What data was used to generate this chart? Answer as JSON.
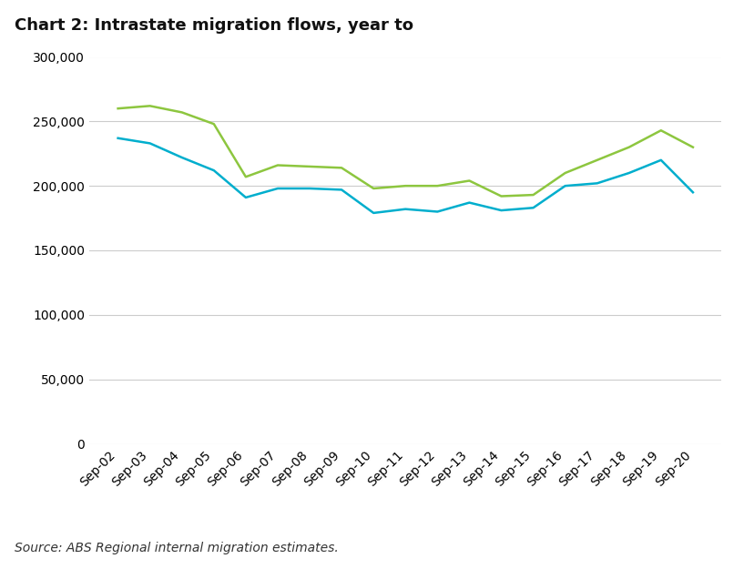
{
  "title": "Chart 2: Intrastate migration flows, year to",
  "source": "Source: ABS Regional internal migration estimates.",
  "x_labels": [
    "Sep-02",
    "Sep-03",
    "Sep-04",
    "Sep-05",
    "Sep-06",
    "Sep-07",
    "Sep-08",
    "Sep-09",
    "Sep-10",
    "Sep-11",
    "Sep-12",
    "Sep-13",
    "Sep-14",
    "Sep-15",
    "Sep-16",
    "Sep-17",
    "Sep-18",
    "Sep-19",
    "Sep-20"
  ],
  "arrivals": [
    260000,
    262000,
    257000,
    248000,
    207000,
    216000,
    215000,
    214000,
    198000,
    200000,
    200000,
    204000,
    192000,
    193000,
    210000,
    220000,
    230000,
    243000,
    230000
  ],
  "departures": [
    237000,
    233000,
    222000,
    212000,
    191000,
    198000,
    198000,
    197000,
    179000,
    182000,
    180000,
    187000,
    181000,
    183000,
    200000,
    202000,
    210000,
    220000,
    195000
  ],
  "arrivals_color": "#8dc63f",
  "departures_color": "#00aecd",
  "ylim": [
    0,
    300000
  ],
  "yticks": [
    0,
    50000,
    100000,
    150000,
    200000,
    250000,
    300000
  ],
  "background_color": "#ffffff",
  "grid_color": "#cccccc",
  "title_fontsize": 13,
  "tick_fontsize": 10,
  "legend_fontsize": 10,
  "source_fontsize": 10,
  "line_width": 1.8
}
